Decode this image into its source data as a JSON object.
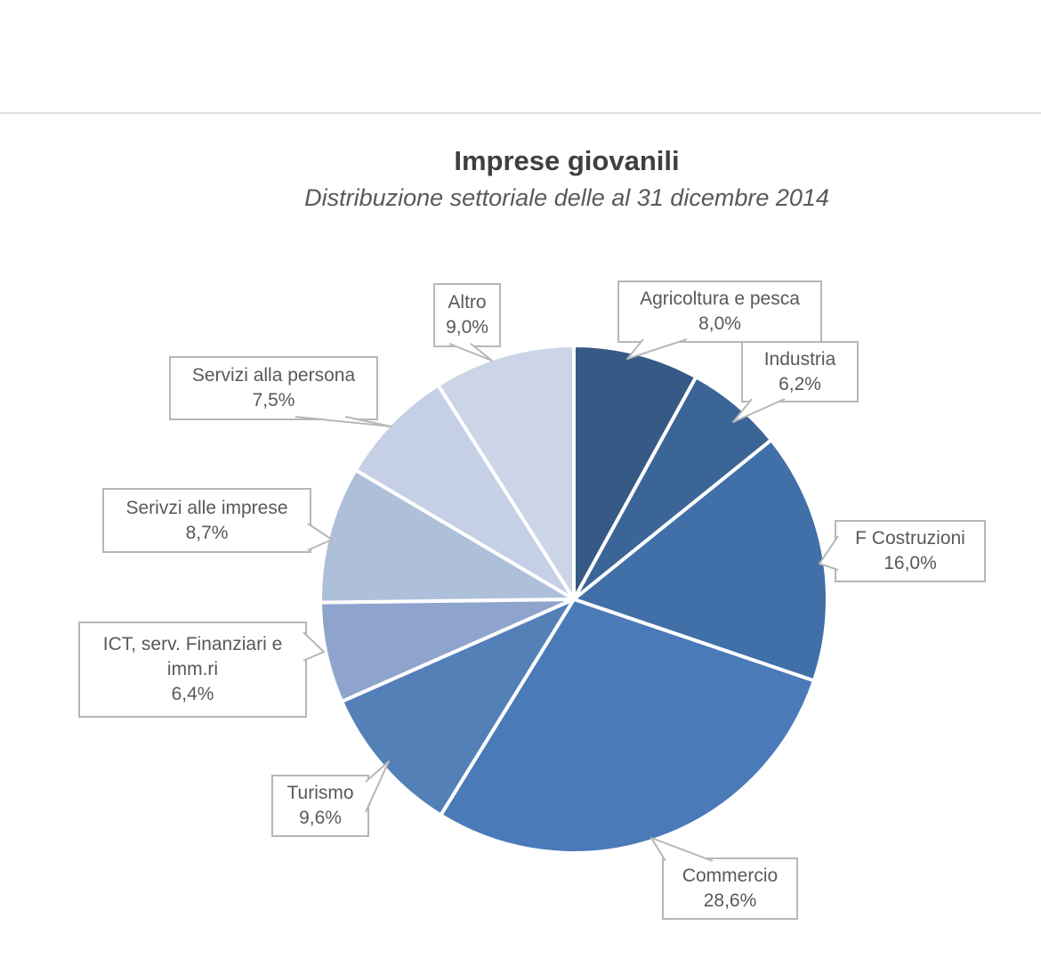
{
  "page": {
    "background_color": "#ffffff",
    "divider_color": "#dcdcdc",
    "callout_border_color": "#b7b7b7",
    "text_color": "#595959",
    "title_color": "#3f3f3f"
  },
  "chart_data": {
    "type": "pie",
    "title": "Imprese giovanili",
    "subtitle": "Distribuzione settoriale delle al 31 dicembre 2014",
    "start_angle_deg": 0,
    "direction": "clockwise",
    "legend": "none",
    "slice_separator_color": "#ffffff",
    "slices": [
      {
        "label": "Agricoltura e pesca",
        "value": 8.0,
        "value_label": "8,0%",
        "color": "#365985"
      },
      {
        "label": "Industria",
        "value": 6.2,
        "value_label": "6,2%",
        "color": "#3c6597"
      },
      {
        "label": "F Costruzioni",
        "value": 16.0,
        "value_label": "16,0%",
        "color": "#4170a8"
      },
      {
        "label": "Commercio",
        "value": 28.6,
        "value_label": "28,6%",
        "color": "#4a7ab8"
      },
      {
        "label": "Turismo",
        "value": 9.6,
        "value_label": "9,6%",
        "color": "#5480b8"
      },
      {
        "label": "ICT, serv. Finanziari e imm.ri",
        "value": 6.4,
        "value_label": "6,4%",
        "color": "#8fa4cd"
      },
      {
        "label": "Serivzi alle imprese",
        "value": 8.7,
        "value_label": "8,7%",
        "color": "#aebfda"
      },
      {
        "label": "Servizi alla persona",
        "value": 7.5,
        "value_label": "7,5%",
        "color": "#c5cfe6"
      },
      {
        "label": "Altro",
        "value": 9.0,
        "value_label": "9,0%",
        "color": "#ccd5e8"
      }
    ]
  }
}
